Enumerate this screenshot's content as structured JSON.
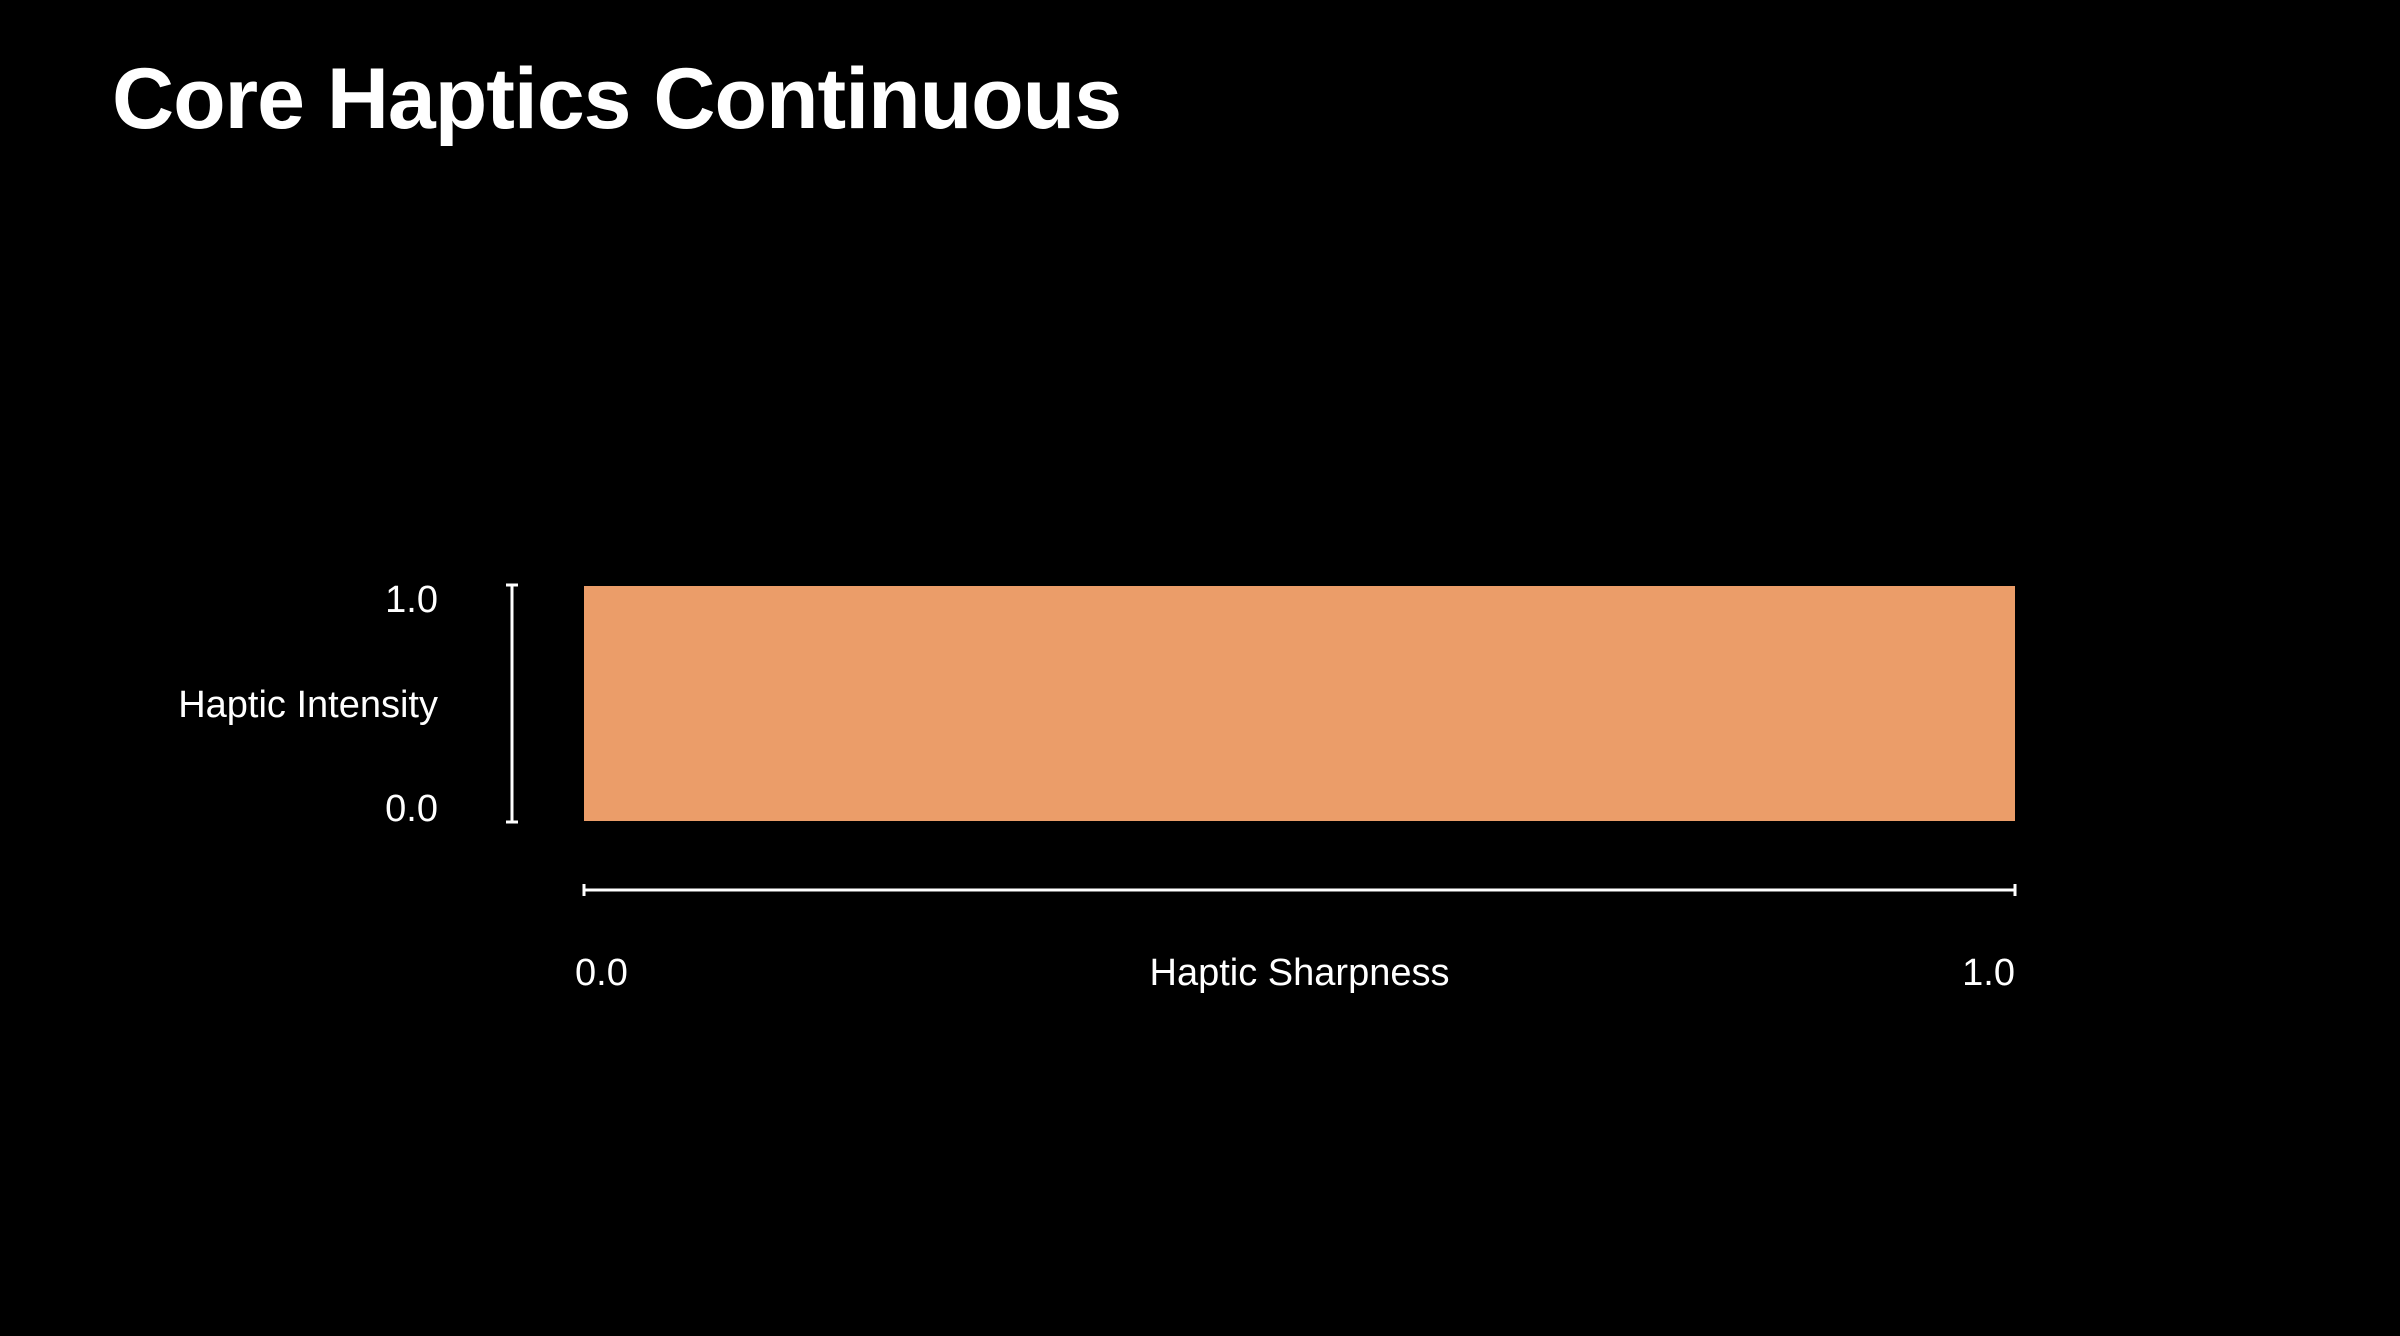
{
  "slide": {
    "title": "Core Haptics Continuous"
  },
  "chart_data": {
    "type": "area",
    "title": "",
    "xlabel": "Haptic Sharpness",
    "ylabel": "Haptic Intensity",
    "xlim": [
      0.0,
      1.0
    ],
    "ylim": [
      0.0,
      1.0
    ],
    "x_ticks": [
      "0.0",
      "1.0"
    ],
    "y_ticks": [
      "0.0",
      "1.0"
    ],
    "grid": false,
    "legend": "none",
    "series": [
      {
        "x": [
          0.0,
          1.0
        ],
        "y": [
          1.0,
          1.0
        ]
      }
    ],
    "colors": {
      "fill": "#EB9D69",
      "axis": "#FFFFFF",
      "background": "#000000"
    }
  }
}
